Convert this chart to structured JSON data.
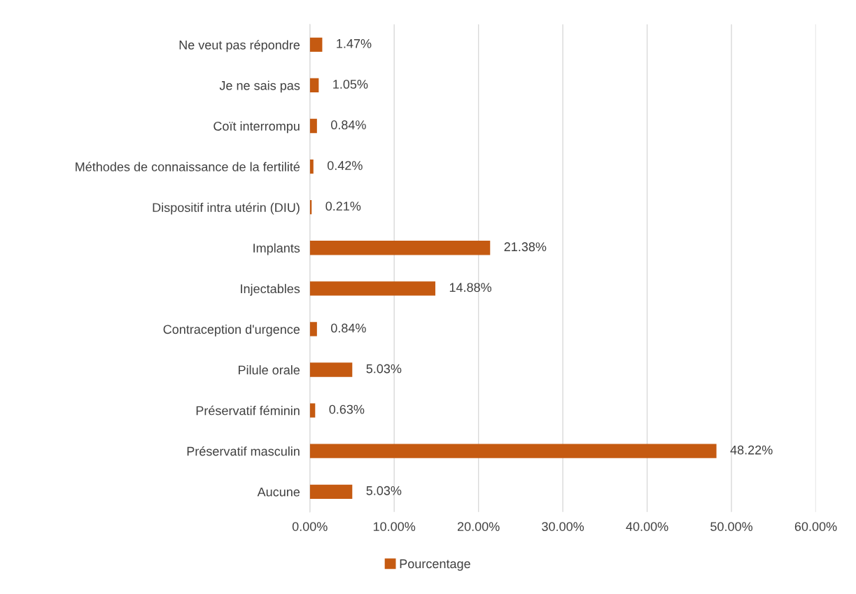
{
  "chart_data": {
    "type": "bar",
    "orientation": "horizontal",
    "categories": [
      "Ne veut pas répondre",
      "Je ne sais pas",
      "Coït interrompu",
      "Méthodes de connaissance de la fertilité",
      "Dispositif intra utérin (DIU)",
      "Implants",
      "Injectables",
      "Contraception d'urgence",
      "Pilule orale",
      "Préservatif féminin",
      "Préservatif masculin",
      "Aucune"
    ],
    "series": [
      {
        "name": "Pourcentage",
        "color": "#c55a11",
        "values": [
          1.47,
          1.05,
          0.84,
          0.42,
          0.21,
          21.38,
          14.88,
          0.84,
          5.03,
          0.63,
          48.22,
          5.03
        ],
        "value_labels": [
          "1.47%",
          "1.05%",
          "0.84%",
          "0.42%",
          "0.21%",
          "21.38%",
          "14.88%",
          "0.84%",
          "5.03%",
          "0.63%",
          "48.22%",
          "5.03%"
        ]
      }
    ],
    "xlim": [
      0,
      60
    ],
    "xticks": [
      {
        "value": 0,
        "label": "0.00%"
      },
      {
        "value": 10,
        "label": "10.00%"
      },
      {
        "value": 20,
        "label": "20.00%"
      },
      {
        "value": 30,
        "label": "30.00%"
      },
      {
        "value": 40,
        "label": "40.00%"
      },
      {
        "value": 50,
        "label": "50.00%"
      },
      {
        "value": 60,
        "label": "60.00%"
      }
    ],
    "grid": "x",
    "legend": "bottom"
  }
}
